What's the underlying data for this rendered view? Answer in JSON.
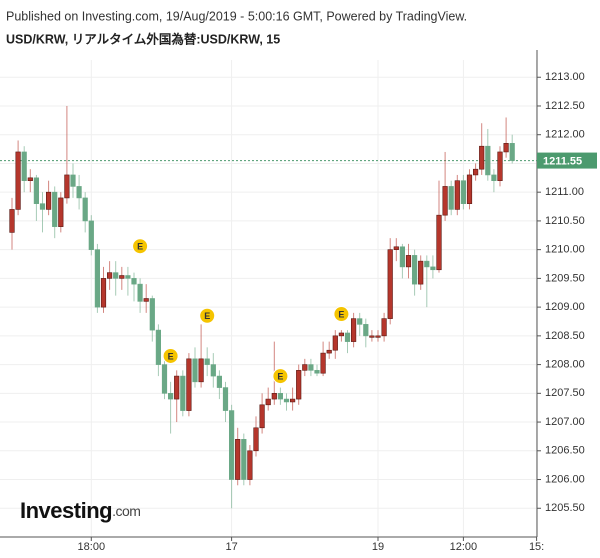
{
  "chart_data": {
    "type": "candlestick",
    "header": "Published on Investing.com, 19/Aug/2019 - 5:00:16 GMT, Powered by TradingView.",
    "title": "USD/KRW, リアルタイム外国為替:USD/KRW, 15",
    "watermark": [
      "Investing",
      ".com"
    ],
    "up_color": "#b5362c",
    "down_color": "#6aa886",
    "last_price": 1211.55,
    "last_price_color": "#4c9a6e",
    "grid": true,
    "ylim": [
      1205.0,
      1213.3
    ],
    "yticks": [
      {
        "value": 1205.5,
        "label": "1205.50"
      },
      {
        "value": 1206,
        "label": "1206.00"
      },
      {
        "value": 1206.5,
        "label": "1206.50"
      },
      {
        "value": 1207,
        "label": "1207.00"
      },
      {
        "value": 1207.5,
        "label": "1207.50"
      },
      {
        "value": 1208,
        "label": "1208.00"
      },
      {
        "value": 1208.5,
        "label": "1208.50"
      },
      {
        "value": 1209,
        "label": "1209.00"
      },
      {
        "value": 1209.5,
        "label": "1209.50"
      },
      {
        "value": 1210,
        "label": "1210.00"
      },
      {
        "value": 1210.5,
        "label": "1210.50"
      },
      {
        "value": 1211,
        "label": "1211.00"
      },
      {
        "value": 1211.5,
        "label": "1211.50"
      },
      {
        "value": 1212,
        "label": "1212.00"
      },
      {
        "value": 1212.5,
        "label": "1212.50"
      },
      {
        "value": 1213,
        "label": "1213.00"
      }
    ],
    "categories": [
      null,
      null,
      null,
      null,
      null,
      null,
      null,
      null,
      null,
      null,
      null,
      null,
      null,
      "18:00",
      null,
      null,
      null,
      null,
      null,
      null,
      null,
      null,
      null,
      null,
      null,
      null,
      null,
      null,
      null,
      null,
      null,
      null,
      null,
      null,
      null,
      null,
      "17",
      null,
      null,
      null,
      null,
      null,
      null,
      null,
      null,
      null,
      null,
      null,
      null,
      null,
      null,
      null,
      null,
      null,
      null,
      null,
      null,
      null,
      null,
      null,
      "19",
      null,
      null,
      null,
      null,
      null,
      null,
      null,
      null,
      null,
      null,
      null,
      null,
      null,
      "12:00",
      null,
      null,
      null,
      null,
      null,
      null,
      null,
      null,
      null,
      null,
      null,
      "15:"
    ],
    "open": [
      1210.3,
      1210.7,
      1211.7,
      1211.2,
      1211.25,
      1210.8,
      1210.7,
      1211.0,
      1210.4,
      1210.9,
      1211.3,
      1211.1,
      1210.9,
      1210.5,
      1210.0,
      1209.0,
      1209.5,
      1209.6,
      1209.5,
      1209.55,
      1209.5,
      1209.4,
      1209.1,
      1209.15,
      1208.6,
      1208.0,
      1207.5,
      1207.4,
      1207.8,
      1207.2,
      1208.1,
      1207.7,
      1208.1,
      1208.0,
      1207.8,
      1207.6,
      1207.2,
      1206.0,
      1206.7,
      1206.0,
      1206.5,
      1206.9,
      1207.3,
      1207.4,
      1207.5,
      1207.4,
      1207.35,
      1207.4,
      1207.9,
      1208.0,
      1207.9,
      1207.85,
      1208.2,
      1208.25,
      1208.5,
      1208.55,
      1208.4,
      1208.8,
      1208.7,
      1208.5,
      1208.5,
      1208.5,
      1208.8,
      1210.0,
      1210.05,
      1209.7,
      1209.9,
      1209.4,
      1209.8,
      1209.7,
      1209.65,
      1210.6,
      1211.1,
      1210.7,
      1211.2,
      1210.8,
      1211.3,
      1211.4,
      1211.8,
      1211.3,
      1211.2,
      1211.7,
      1211.85,
      null,
      null,
      null,
      null
    ],
    "high": [
      1210.9,
      1211.9,
      1211.8,
      1211.4,
      1211.3,
      1211.0,
      1211.2,
      1211.1,
      1211.0,
      1212.5,
      1211.5,
      1211.3,
      1211.0,
      1210.6,
      1210.1,
      1209.7,
      1209.8,
      1209.8,
      1209.7,
      1209.7,
      1209.6,
      1209.5,
      1209.4,
      1209.2,
      1208.7,
      1208.1,
      1207.7,
      1207.9,
      1207.9,
      1208.2,
      1208.3,
      1208.7,
      1208.3,
      1208.2,
      1207.9,
      1207.7,
      1207.3,
      1206.9,
      1206.8,
      1206.6,
      1207.1,
      1207.5,
      1207.6,
      1208.4,
      1207.6,
      1207.5,
      1207.6,
      1208.0,
      1208.1,
      1208.1,
      1208.0,
      1208.4,
      1208.4,
      1208.6,
      1208.6,
      1208.6,
      1208.9,
      1208.9,
      1208.8,
      1208.6,
      1208.6,
      1208.9,
      1210.2,
      1210.2,
      1210.1,
      1210.1,
      1210.0,
      1209.9,
      1209.9,
      1209.9,
      1211.2,
      1211.7,
      1211.2,
      1211.3,
      1211.3,
      1211.4,
      1211.5,
      1212.2,
      1212.1,
      1211.4,
      1211.8,
      1212.3,
      1212.0,
      null,
      null,
      null,
      null
    ],
    "low": [
      1210.0,
      1210.6,
      1211.0,
      1211.0,
      1210.5,
      1210.3,
      1210.6,
      1210.2,
      1210.3,
      1210.8,
      1210.9,
      1210.7,
      1210.3,
      1209.9,
      1208.9,
      1208.9,
      1209.3,
      1209.2,
      1209.3,
      1209.2,
      1209.1,
      1208.9,
      1208.9,
      1208.4,
      1207.8,
      1207.4,
      1206.8,
      1207.0,
      1207.1,
      1207.1,
      1207.6,
      1207.6,
      1207.8,
      1207.6,
      1207.4,
      1207.0,
      1205.5,
      1205.9,
      1205.9,
      1205.9,
      1206.4,
      1206.8,
      1207.2,
      1207.3,
      1207.3,
      1207.2,
      1207.2,
      1207.3,
      1207.8,
      1207.8,
      1207.8,
      1207.8,
      1208.1,
      1208.1,
      1208.4,
      1208.2,
      1208.3,
      1208.5,
      1208.3,
      1208.4,
      1208.4,
      1208.4,
      1208.7,
      1209.8,
      1209.5,
      1209.5,
      1209.2,
      1209.3,
      1209.0,
      1209.5,
      1209.6,
      1210.5,
      1210.6,
      1210.6,
      1210.7,
      1210.7,
      1211.2,
      1211.3,
      1211.2,
      1211.0,
      1211.1,
      1211.6,
      1211.5,
      null,
      null,
      null,
      null
    ],
    "close": [
      1210.7,
      1211.7,
      1211.2,
      1211.25,
      1210.8,
      1210.7,
      1211.0,
      1210.4,
      1210.9,
      1211.3,
      1211.1,
      1210.9,
      1210.5,
      1210.0,
      1209.0,
      1209.5,
      1209.6,
      1209.5,
      1209.55,
      1209.5,
      1209.4,
      1209.1,
      1209.15,
      1208.6,
      1208.0,
      1207.5,
      1207.4,
      1207.8,
      1207.2,
      1208.1,
      1207.7,
      1208.1,
      1208.0,
      1207.8,
      1207.6,
      1207.2,
      1206.0,
      1206.7,
      1206.0,
      1206.5,
      1206.9,
      1207.3,
      1207.4,
      1207.5,
      1207.4,
      1207.35,
      1207.4,
      1207.9,
      1208.0,
      1207.9,
      1207.85,
      1208.2,
      1208.25,
      1208.5,
      1208.55,
      1208.4,
      1208.8,
      1208.7,
      1208.5,
      1208.5,
      1208.5,
      1208.8,
      1210.0,
      1210.05,
      1209.7,
      1209.9,
      1209.4,
      1209.8,
      1209.7,
      1209.65,
      1210.6,
      1211.1,
      1210.7,
      1211.2,
      1210.8,
      1211.3,
      1211.4,
      1211.8,
      1211.3,
      1211.2,
      1211.7,
      1211.85,
      1211.55,
      null,
      null,
      null,
      null
    ],
    "events": [
      {
        "label": "E",
        "index": 21,
        "value": 1210.06
      },
      {
        "label": "E",
        "index": 32,
        "value": 1208.85
      },
      {
        "label": "E",
        "index": 26,
        "value": 1208.15
      },
      {
        "label": "E",
        "index": 44,
        "value": 1207.8
      },
      {
        "label": "E",
        "index": 54,
        "value": 1208.88
      }
    ]
  }
}
